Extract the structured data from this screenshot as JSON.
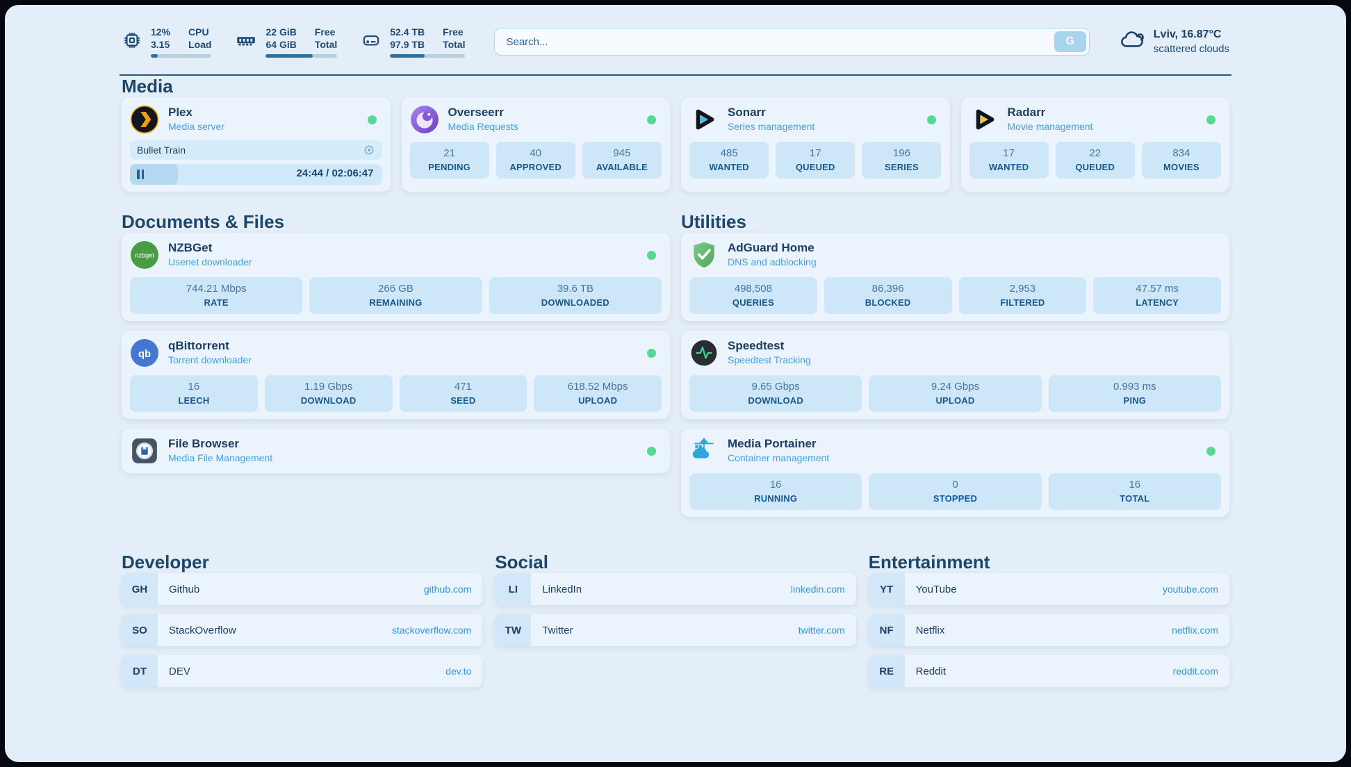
{
  "header": {
    "metrics": [
      {
        "icon": "cpu-icon",
        "value_top": "12%",
        "value_bottom": "3.15",
        "label_top": "CPU",
        "label_bottom": "Load",
        "progress_pct": 12
      },
      {
        "icon": "ram-icon",
        "value_top": "22 GiB",
        "value_bottom": "64 GiB",
        "label_top": "Free",
        "label_bottom": "Total",
        "progress_pct": 66
      },
      {
        "icon": "disk-icon",
        "value_top": "52.4 TB",
        "value_bottom": "97.9 TB",
        "label_top": "Free",
        "label_bottom": "Total",
        "progress_pct": 46
      }
    ],
    "search": {
      "placeholder": "Search...",
      "button_label": "G"
    },
    "weather": {
      "icon": "cloud-icon",
      "line1": "Lviv, 16.87°C",
      "line2": "scattered clouds"
    }
  },
  "sections": {
    "media": {
      "title": "Media",
      "apps": [
        {
          "icon": "plex-icon",
          "name": "Plex",
          "subtitle": "Media server",
          "status": "online",
          "player": {
            "title": "Bullet Train",
            "time": "24:44 / 02:06:47",
            "progress_pct": 19
          }
        },
        {
          "icon": "overseerr-icon",
          "name": "Overseerr",
          "subtitle": "Media Requests",
          "status": "online",
          "stats": [
            {
              "value": "21",
              "label": "PENDING"
            },
            {
              "value": "40",
              "label": "APPROVED"
            },
            {
              "value": "945",
              "label": "AVAILABLE"
            }
          ]
        },
        {
          "icon": "sonarr-icon",
          "name": "Sonarr",
          "subtitle": "Series management",
          "status": "online",
          "stats": [
            {
              "value": "485",
              "label": "WANTED"
            },
            {
              "value": "17",
              "label": "QUEUED"
            },
            {
              "value": "196",
              "label": "SERIES"
            }
          ]
        },
        {
          "icon": "radarr-icon",
          "name": "Radarr",
          "subtitle": "Movie management",
          "status": "online",
          "stats": [
            {
              "value": "17",
              "label": "WANTED"
            },
            {
              "value": "22",
              "label": "QUEUED"
            },
            {
              "value": "834",
              "label": "MOVIES"
            }
          ]
        }
      ]
    },
    "documents": {
      "title": "Documents & Files",
      "apps": [
        {
          "icon": "nzbget-icon",
          "name": "NZBGet",
          "subtitle": "Usenet downloader",
          "status": "online",
          "stats": [
            {
              "value": "744.21 Mbps",
              "label": "RATE"
            },
            {
              "value": "266 GB",
              "label": "REMAINING"
            },
            {
              "value": "39.6 TB",
              "label": "DOWNLOADED"
            }
          ]
        },
        {
          "icon": "qbittorrent-icon",
          "name": "qBittorrent",
          "subtitle": "Torrent downloader",
          "status": "online",
          "stats": [
            {
              "value": "16",
              "label": "LEECH"
            },
            {
              "value": "1.19 Gbps",
              "label": "DOWNLOAD"
            },
            {
              "value": "471",
              "label": "SEED"
            },
            {
              "value": "618.52 Mbps",
              "label": "UPLOAD"
            }
          ]
        },
        {
          "icon": "filebrowser-icon",
          "name": "File Browser",
          "subtitle": "Media File Management",
          "status": "online",
          "stats": []
        }
      ]
    },
    "utilities": {
      "title": "Utilities",
      "apps": [
        {
          "icon": "adguard-icon",
          "name": "AdGuard Home",
          "subtitle": "DNS and adblocking",
          "stats": [
            {
              "value": "498,508",
              "label": "QUERIES"
            },
            {
              "value": "86,396",
              "label": "BLOCKED"
            },
            {
              "value": "2,953",
              "label": "FILTERED"
            },
            {
              "value": "47.57 ms",
              "label": "LATENCY"
            }
          ]
        },
        {
          "icon": "speedtest-icon",
          "name": "Speedtest",
          "subtitle": "Speedtest Tracking",
          "stats": [
            {
              "value": "9.65 Gbps",
              "label": "DOWNLOAD"
            },
            {
              "value": "9.24 Gbps",
              "label": "UPLOAD"
            },
            {
              "value": "0.993 ms",
              "label": "PING"
            }
          ]
        },
        {
          "icon": "portainer-icon",
          "name": "Media Portainer",
          "subtitle": "Container management",
          "status": "online",
          "stats": [
            {
              "value": "16",
              "label": "RUNNING"
            },
            {
              "value": "0",
              "label": "STOPPED"
            },
            {
              "value": "16",
              "label": "TOTAL"
            }
          ]
        }
      ]
    }
  },
  "bookmarks": {
    "groups": [
      {
        "title": "Developer",
        "items": [
          {
            "abbr": "GH",
            "name": "Github",
            "url": "github.com"
          },
          {
            "abbr": "SO",
            "name": "StackOverflow",
            "url": "stackoverflow.com"
          },
          {
            "abbr": "DT",
            "name": "DEV",
            "url": "dev.to"
          }
        ]
      },
      {
        "title": "Social",
        "items": [
          {
            "abbr": "LI",
            "name": "LinkedIn",
            "url": "linkedin.com"
          },
          {
            "abbr": "TW",
            "name": "Twitter",
            "url": "twitter.com"
          }
        ]
      },
      {
        "title": "Entertainment",
        "items": [
          {
            "abbr": "YT",
            "name": "YouTube",
            "url": "youtube.com"
          },
          {
            "abbr": "NF",
            "name": "Netflix",
            "url": "netflix.com"
          },
          {
            "abbr": "RE",
            "name": "Reddit",
            "url": "reddit.com"
          }
        ]
      }
    ]
  },
  "colors": {
    "page_bg": "#e4eef8",
    "card_bg": "#ebf4fc",
    "tile_bg": "#cde7f8",
    "accent_navy": "#1d4b77",
    "subtitle_blue": "#43a0e3",
    "status_green": "#57d893",
    "link_blue": "#2f96e0",
    "plex_orange": "#e5a00d",
    "sonarr_blue": "#35c5f4",
    "radarr_yellow": "#fdc331"
  }
}
